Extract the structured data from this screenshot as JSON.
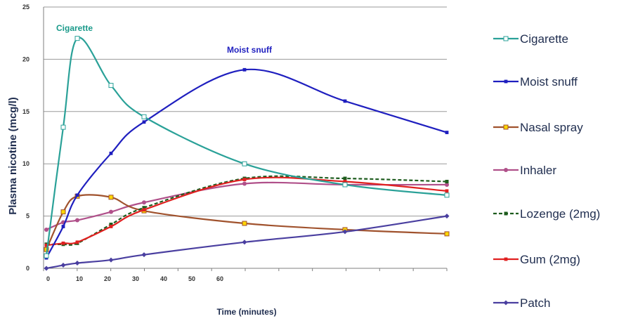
{
  "chart_data": {
    "type": "line",
    "xlabel": "Time (minutes)",
    "ylabel": "Plasma nicotine (mcg/l)",
    "ylim": [
      0,
      25
    ],
    "y_ticks": [
      0,
      5,
      10,
      15,
      20,
      25
    ],
    "x_tick_labels": [
      "0",
      "10",
      "20",
      "30",
      "40",
      "50",
      "60"
    ],
    "x_range": [
      -1,
      120
    ],
    "grid": "horizontal",
    "legend_position": "right",
    "annotations": [
      {
        "text": "Cigarette",
        "color": "#1a9a8a"
      },
      {
        "text": "Moist snuff",
        "color": "#1f1fbf"
      }
    ],
    "series": [
      {
        "name": "Cigarette",
        "color": "#2aa198",
        "marker": "square-open",
        "x": [
          0,
          5,
          10,
          15,
          20,
          25,
          30,
          60,
          90,
          120
        ],
        "y": [
          1.2,
          13.5,
          22,
          17.5,
          14.5,
          10,
          10,
          10,
          8,
          7
        ]
      },
      {
        "name": "Moist snuff",
        "color": "#1f1fbf",
        "marker": "small-square",
        "x": [
          0,
          5,
          10,
          15,
          20,
          25,
          30,
          60,
          90,
          120
        ],
        "y": [
          1,
          4,
          7,
          11,
          14,
          19,
          19,
          19,
          16,
          13
        ]
      },
      {
        "name": "Nasal spray",
        "color": "#a0522d",
        "marker": "square-yellow",
        "x": [
          0,
          5,
          10,
          15,
          20,
          25,
          30,
          60,
          90,
          120
        ],
        "y": [
          1.8,
          5.4,
          6.9,
          6.8,
          5.5,
          4.3,
          4.3,
          4.3,
          3.7,
          3.3
        ]
      },
      {
        "name": "Inhaler",
        "color": "#b0508a",
        "marker": "circle",
        "x": [
          0,
          5,
          10,
          15,
          20,
          25,
          30,
          60,
          90,
          120
        ],
        "y": [
          3.7,
          4.4,
          4.6,
          5.4,
          6.3,
          8.1,
          8.1,
          8.1,
          8.0,
          8.0
        ]
      },
      {
        "name": "Lozenge (2mg)",
        "color": "#1e5c1e",
        "marker": "dash",
        "x": [
          0,
          5,
          10,
          15,
          20,
          25,
          30,
          60,
          90,
          120
        ],
        "y": [
          2.3,
          2.3,
          2.4,
          4.2,
          5.8,
          8.6,
          8.6,
          8.6,
          8.6,
          8.3
        ]
      },
      {
        "name": "Gum (2mg)",
        "color": "#e02020",
        "marker": "small-square",
        "x": [
          0,
          5,
          10,
          15,
          20,
          25,
          30,
          60,
          90,
          120
        ],
        "y": [
          2.2,
          2.4,
          2.5,
          4.0,
          5.6,
          8.5,
          8.5,
          8.5,
          8.3,
          7.4
        ]
      },
      {
        "name": "Patch",
        "color": "#4a3fa0",
        "marker": "diamond",
        "x": [
          0,
          5,
          10,
          15,
          20,
          25,
          30,
          60,
          90,
          120
        ],
        "y": [
          0,
          0.3,
          0.5,
          0.8,
          1.3,
          2.5,
          2.5,
          2.5,
          3.5,
          5.0
        ]
      }
    ]
  }
}
